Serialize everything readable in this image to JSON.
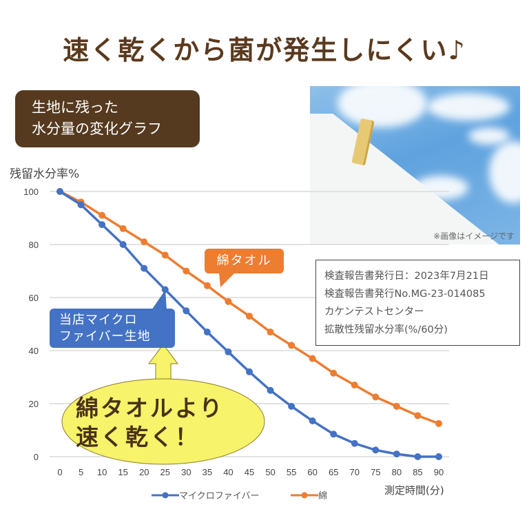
{
  "headline": "速く乾くから菌が発生しにくい♪",
  "title_box": {
    "line1": "生地に残った",
    "line2": "水分量の変化グラフ"
  },
  "photo": {
    "note": "※画像はイメージです"
  },
  "info_box": {
    "lines": [
      "検査報告書発行日：2023年7月21日",
      "検査報告書発行No.MG-23-014085",
      "カケンテストセンター",
      "拡散性残留水分率(%/60分)"
    ]
  },
  "callouts": {
    "cotton": "綿タオル",
    "micro_line1": "当店マイクロ",
    "micro_line2": "ファイバー生地",
    "emphasis_line1": "綿タオルより",
    "emphasis_line2": "速く乾く！"
  },
  "colors": {
    "microfiber": "#4472c4",
    "cotton": "#ed7d31",
    "brown": "#553a20",
    "emphasis": "#f7f36a"
  },
  "chart_data": {
    "type": "line",
    "title": "生地に残った水分量の変化グラフ",
    "xlabel": "測定時間(分)",
    "ylabel": "残留水分率%",
    "x": [
      0,
      5,
      10,
      15,
      20,
      25,
      30,
      35,
      40,
      45,
      50,
      55,
      60,
      65,
      70,
      75,
      80,
      85,
      90
    ],
    "y_ticks": [
      0,
      20,
      40,
      60,
      80,
      100
    ],
    "ylim": [
      0,
      100
    ],
    "grid": true,
    "legend_position": "bottom",
    "series": [
      {
        "name": "マイクロファイバー",
        "color": "#4472c4",
        "values": [
          100,
          95,
          87.5,
          80,
          71,
          63,
          55,
          47,
          39.5,
          32,
          25,
          19,
          13.5,
          8.5,
          5,
          2.5,
          1,
          0,
          0
        ]
      },
      {
        "name": "綿",
        "color": "#ed7d31",
        "values": [
          100,
          96,
          91,
          86,
          81,
          76,
          70,
          64.5,
          58.5,
          53,
          47,
          42,
          37,
          31.5,
          27,
          22.5,
          19,
          15.5,
          12.5
        ]
      }
    ]
  }
}
